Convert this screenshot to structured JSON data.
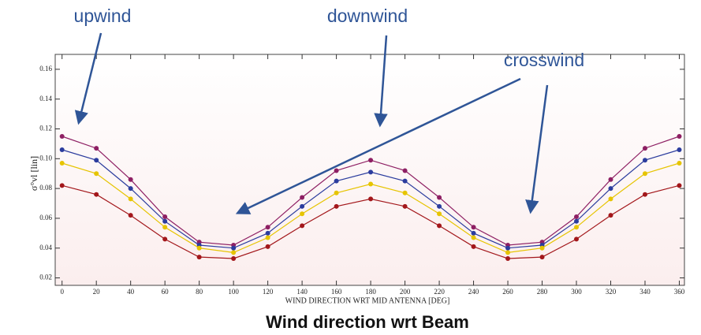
{
  "chart_data": {
    "type": "line",
    "title": "Wind direction wrt Beam",
    "xlabel": "WIND DIRECTION WRT MID ANTENNA [DEG]",
    "ylabel": "σ°vl [lin]",
    "annotations": [
      "upwind",
      "downwind",
      "crosswind"
    ],
    "x": [
      0,
      20,
      40,
      60,
      80,
      100,
      120,
      140,
      160,
      180,
      200,
      220,
      240,
      260,
      280,
      300,
      320,
      340,
      360
    ],
    "series": [
      {
        "color": "#8e1f63",
        "values": [
          0.115,
          0.107,
          0.086,
          0.061,
          0.044,
          0.042,
          0.054,
          0.074,
          0.092,
          0.099,
          0.092,
          0.074,
          0.054,
          0.042,
          0.044,
          0.061,
          0.086,
          0.107,
          0.115
        ]
      },
      {
        "color": "#2b3c9e",
        "values": [
          0.106,
          0.099,
          0.08,
          0.058,
          0.042,
          0.04,
          0.05,
          0.068,
          0.085,
          0.091,
          0.085,
          0.068,
          0.05,
          0.04,
          0.042,
          0.058,
          0.08,
          0.099,
          0.106
        ]
      },
      {
        "color": "#e6c400",
        "values": [
          0.097,
          0.09,
          0.073,
          0.054,
          0.04,
          0.037,
          0.047,
          0.063,
          0.077,
          0.083,
          0.077,
          0.063,
          0.047,
          0.037,
          0.04,
          0.054,
          0.073,
          0.09,
          0.097
        ]
      },
      {
        "color": "#a3171b",
        "values": [
          0.082,
          0.076,
          0.062,
          0.046,
          0.034,
          0.033,
          0.041,
          0.055,
          0.068,
          0.073,
          0.068,
          0.055,
          0.041,
          0.033,
          0.034,
          0.046,
          0.062,
          0.076,
          0.082
        ]
      }
    ],
    "xlim": [
      -4,
      363
    ],
    "xticks": [
      0,
      20,
      40,
      60,
      80,
      100,
      120,
      140,
      160,
      180,
      200,
      220,
      240,
      260,
      280,
      300,
      320,
      340,
      360
    ],
    "ylim": [
      0.015,
      0.17
    ],
    "yticks": [
      0.02,
      0.04,
      0.06,
      0.08,
      {
        "value": 0.1,
        "label": "0.10"
      },
      0.12,
      0.14,
      0.16
    ]
  }
}
